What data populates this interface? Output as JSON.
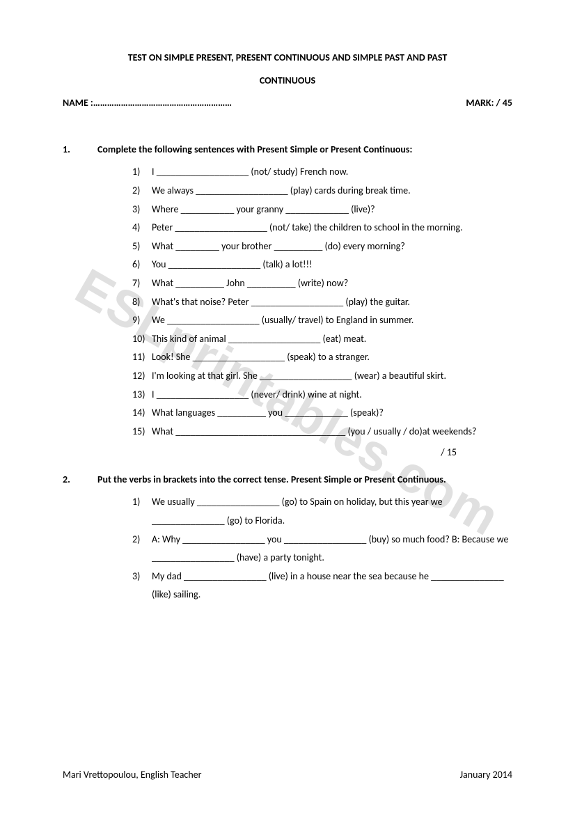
{
  "title_line1": "TEST ON SIMPLE PRESENT, PRESENT CONTINUOUS AND SIMPLE PAST AND PAST",
  "title_line2": "CONTINUOUS",
  "name_label": "NAME :……………………………………………………",
  "mark_label": "MARK:         / 45",
  "watermark": "ESLprintables.com",
  "section1": {
    "num": "1.",
    "instr": "Complete the following sentences with Present Simple or Present Continuous:",
    "items": [
      {
        "n": "1)",
        "t": "I ___________________ (not/ study) French now."
      },
      {
        "n": "2)",
        "t": "We always ___________________ (play) cards during break time."
      },
      {
        "n": "3)",
        "t": "Where ___________ your granny _____________ (live)?"
      },
      {
        "n": "4)",
        "t": "Peter ___________________ (not/ take) the children to school in the morning."
      },
      {
        "n": "5)",
        "t": "What _________ your brother __________ (do) every morning?"
      },
      {
        "n": "6)",
        "t": "You ___________________ (talk) a lot!!!"
      },
      {
        "n": "7)",
        "t": "What __________ John __________ (write) now?"
      },
      {
        "n": "8)",
        "t": "What's that noise? Peter ___________________ (play) the guitar."
      },
      {
        "n": "9)",
        "t": "We ___________________ (usually/ travel) to England in summer."
      },
      {
        "n": "10)",
        "t": "This kind of animal ___________________ (eat) meat."
      },
      {
        "n": "11)",
        "t": "Look! She ___________________ (speak) to a stranger."
      },
      {
        "n": "12)",
        "t": "I'm looking at that girl. She ___________________ (wear) a beautiful skirt."
      },
      {
        "n": "13)",
        "t": "I ___________________ (never/ drink) wine at night."
      },
      {
        "n": "14)",
        "t": "What languages __________ you _____________ (speak)?"
      },
      {
        "n": "15)",
        "t": "What ___________________________________ (you / usually / do)at weekends?"
      }
    ],
    "score": "/ 15"
  },
  "section2": {
    "num": "2.",
    "instr": "Put the verbs in brackets into the correct tense. Present Simple or Present Continuous.",
    "items": [
      {
        "n": "1)",
        "t": "We usually _________________ (go) to Spain on holiday, but this year we _______________ (go) to Florida."
      },
      {
        "n": "2)",
        "t": "A: Why _________________ you _________________ (buy) so much food? B: Because we _________________ (have) a party tonight."
      },
      {
        "n": "3)",
        "t": "My dad _________________ (live) in a house near the sea because he _______________ (like) sailing."
      }
    ]
  },
  "footer_left": "Mari Vrettopoulou, English Teacher",
  "footer_right": "January 2014"
}
